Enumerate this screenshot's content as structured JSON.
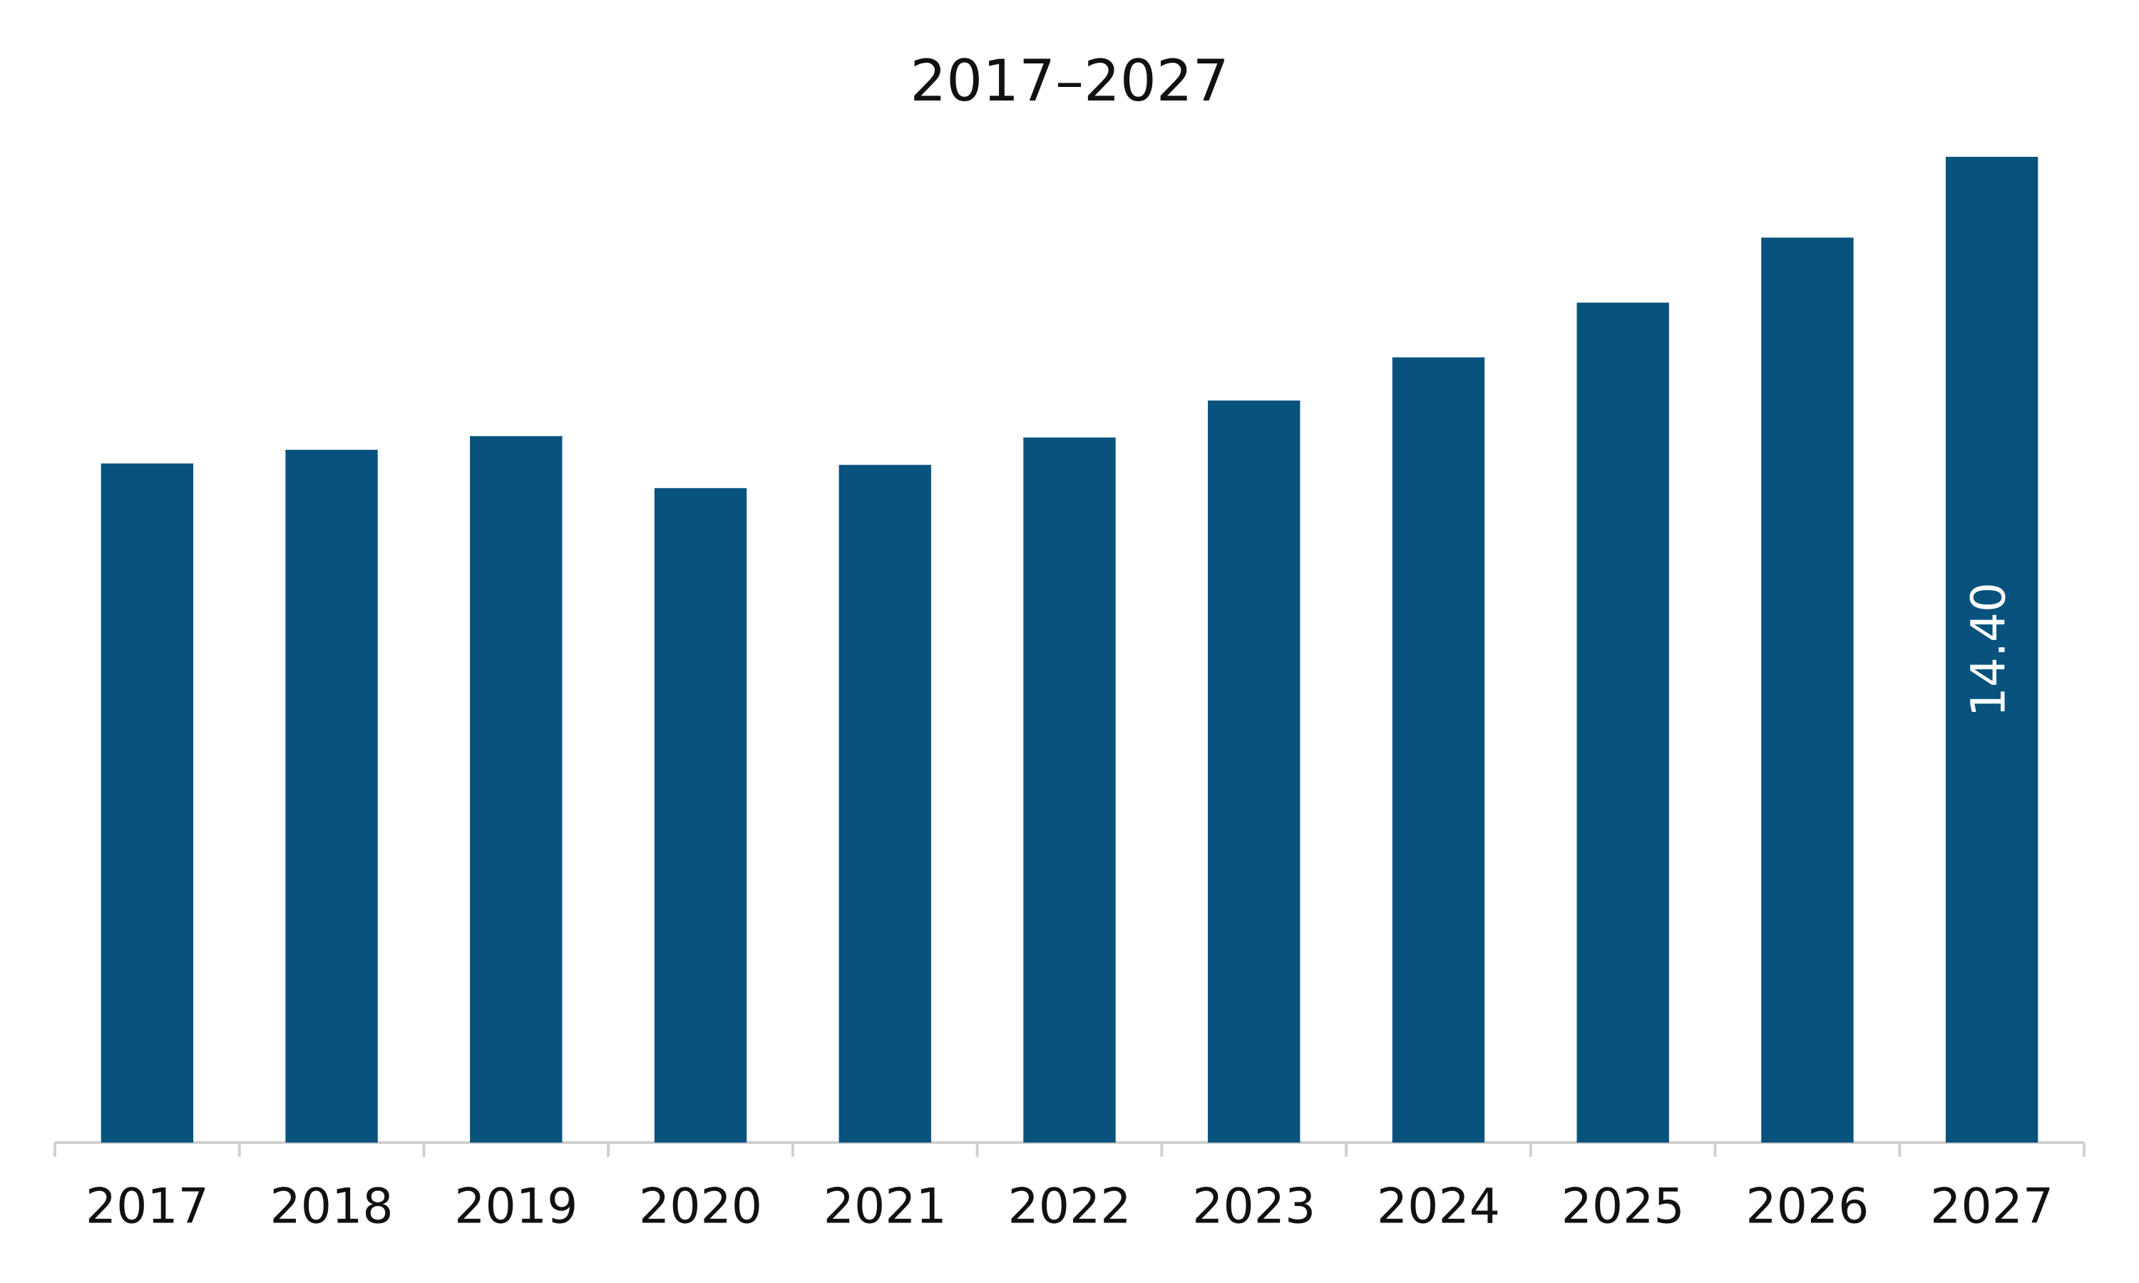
{
  "chart_data": {
    "type": "bar",
    "title": "2017–2027",
    "categories": [
      "2017",
      "2018",
      "2019",
      "2020",
      "2021",
      "2022",
      "2023",
      "2024",
      "2025",
      "2026",
      "2027"
    ],
    "values": [
      9.92,
      10.12,
      10.32,
      9.56,
      9.9,
      10.3,
      10.84,
      11.47,
      12.27,
      13.22,
      14.4
    ],
    "value_labels": [
      null,
      null,
      null,
      null,
      null,
      null,
      null,
      null,
      null,
      null,
      "14.40"
    ],
    "color": "#08527e"
  }
}
